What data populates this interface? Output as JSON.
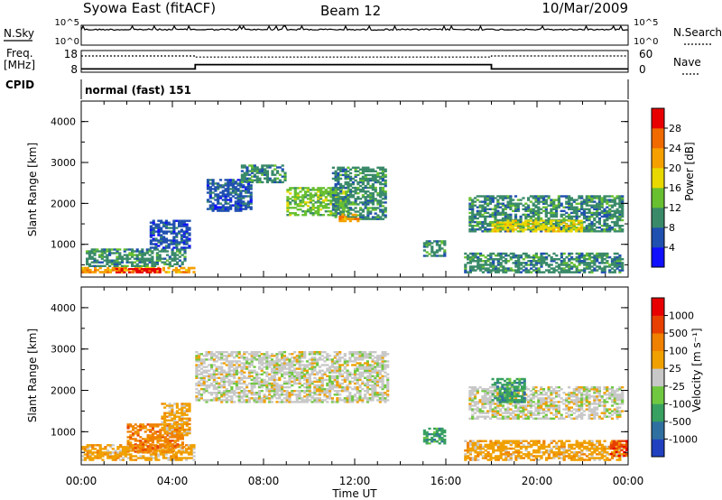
{
  "header": {
    "title": "Syowa East (fitACF)",
    "beam": "Beam 12",
    "date": "10/Mar/2009"
  },
  "top_panels": {
    "nsky_label": "N.Sky",
    "nsky_ticks": [
      "10^5",
      "10^0"
    ],
    "nsearch_label": "N.Search",
    "nsearch_ticks": [
      "10^5",
      "10^0"
    ],
    "freq_label": "Freq.",
    "freq_unit": "[MHz]",
    "freq_ticks": [
      "18",
      "8"
    ],
    "nave_label": "Nave",
    "nave_ticks": [
      "60",
      "0"
    ],
    "cpid_label": "CPID",
    "cpid_text": "normal (fast) 151"
  },
  "chart_data": [
    {
      "type": "heatmap",
      "parameter": "power",
      "ylabel": "Slant Range [km]",
      "yticks": [
        "1000",
        "2000",
        "3000",
        "4000"
      ],
      "ylim": [
        200,
        4500
      ],
      "colorbar_label": "Power [dB]",
      "colorbar_ticks": [
        "4",
        "8",
        "12",
        "16",
        "20",
        "24",
        "28"
      ],
      "colors": [
        "#1010ff",
        "#2050b0",
        "#3a8a6a",
        "#68c030",
        "#e8d800",
        "#f5a000",
        "#f06a00",
        "#e80000"
      ],
      "regions": [
        {
          "t": [
            0.0,
            5.0
          ],
          "range": [
            300,
            450
          ],
          "level": 5
        },
        {
          "t": [
            1.5,
            3.5
          ],
          "range": [
            300,
            420
          ],
          "level": 7
        },
        {
          "t": [
            0.2,
            4.6
          ],
          "range": [
            450,
            900
          ],
          "level": 2
        },
        {
          "t": [
            3.0,
            4.8
          ],
          "range": [
            900,
            1600
          ],
          "level": 1
        },
        {
          "t": [
            5.5,
            7.5
          ],
          "range": [
            1800,
            2600
          ],
          "level": 1
        },
        {
          "t": [
            7.0,
            9.0
          ],
          "range": [
            2500,
            2950
          ],
          "level": 2
        },
        {
          "t": [
            9.0,
            11.8
          ],
          "range": [
            1700,
            2400
          ],
          "level": 3
        },
        {
          "t": [
            11.0,
            13.4
          ],
          "range": [
            1600,
            2900
          ],
          "level": 2
        },
        {
          "t": [
            11.3,
            12.2
          ],
          "range": [
            1550,
            1750
          ],
          "level": 5
        },
        {
          "t": [
            15.0,
            16.0
          ],
          "range": [
            700,
            1100
          ],
          "level": 2
        },
        {
          "t": [
            17.0,
            23.8
          ],
          "range": [
            1300,
            2200
          ],
          "level": 2
        },
        {
          "t": [
            18.0,
            22.0
          ],
          "range": [
            1300,
            1600
          ],
          "level": 4
        },
        {
          "t": [
            16.8,
            23.8
          ],
          "range": [
            300,
            800
          ],
          "level": 2
        }
      ]
    },
    {
      "type": "heatmap",
      "parameter": "velocity",
      "ylabel": "Slant Range [km]",
      "yticks": [
        "1000",
        "2000",
        "3000",
        "4000"
      ],
      "ylim": [
        200,
        4500
      ],
      "colorbar_label": "Velocity [m s⁻¹]",
      "colorbar_ticks": [
        "1000",
        "500",
        "100",
        "25",
        "-25",
        "-100",
        "-500",
        "-1000"
      ],
      "colors": [
        "#2040c0",
        "#3070a0",
        "#38a060",
        "#70c840",
        "#c8c8c8",
        "#f0a000",
        "#f08000",
        "#e84000",
        "#e80000"
      ],
      "regions": [
        {
          "t": [
            0.0,
            5.0
          ],
          "range": [
            300,
            700
          ],
          "level": 5
        },
        {
          "t": [
            2.0,
            4.5
          ],
          "range": [
            500,
            1200
          ],
          "level": 6
        },
        {
          "t": [
            3.5,
            4.8
          ],
          "range": [
            900,
            1700
          ],
          "level": 5
        },
        {
          "t": [
            5.0,
            13.5
          ],
          "range": [
            1700,
            2950
          ],
          "level": 4
        },
        {
          "t": [
            15.0,
            16.0
          ],
          "range": [
            700,
            1100
          ],
          "level": 2
        },
        {
          "t": [
            17.0,
            23.8
          ],
          "range": [
            1300,
            2100
          ],
          "level": 4
        },
        {
          "t": [
            18.0,
            19.5
          ],
          "range": [
            1700,
            2300
          ],
          "level": 2
        },
        {
          "t": [
            16.8,
            23.8
          ],
          "range": [
            300,
            800
          ],
          "level": 5
        },
        {
          "t": [
            23.2,
            24.0
          ],
          "range": [
            400,
            800
          ],
          "level": 7
        }
      ]
    }
  ],
  "time_axis": {
    "label": "Time UT",
    "ticks": [
      "00:00",
      "04:00",
      "08:00",
      "12:00",
      "16:00",
      "20:00",
      "00:00"
    ]
  },
  "operating_params": {
    "freq_mhz": {
      "t": [
        0,
        5.0,
        5.0,
        18.0,
        18.0,
        24
      ],
      "values": [
        9.5,
        9.5,
        11.5,
        11.5,
        9.5,
        9.5
      ]
    },
    "nave": {
      "t": [
        0,
        5.0,
        5.0,
        18.0,
        18.0,
        24
      ],
      "values": [
        45,
        45,
        42,
        42,
        45,
        45
      ]
    }
  }
}
